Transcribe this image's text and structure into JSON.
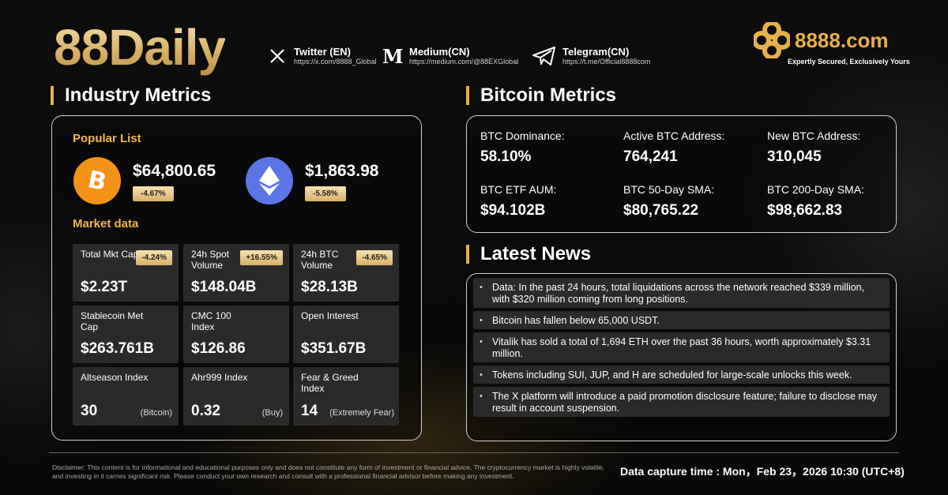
{
  "brand": {
    "title": "88Daily",
    "logo_text": "8888.com",
    "tagline": "Expertly Secured, Exclusively Yours",
    "accent": "#e8b04a"
  },
  "socials": [
    {
      "name": "Twitter (EN)",
      "url": "https://x.com/8888_Global",
      "icon": "x-icon"
    },
    {
      "name": "Medium(CN)",
      "url": "https://medium.com/@88EXGlobal",
      "icon": "medium-icon"
    },
    {
      "name": "Telegram(CN)",
      "url": "https://t.me/Official8888com",
      "icon": "telegram-icon"
    }
  ],
  "industry": {
    "title": "Industry Metrics",
    "popular_label": "Popular List",
    "coins": [
      {
        "icon": "bitcoin-icon",
        "price": "$64,800.65",
        "change": "-4.67%",
        "color": "#f39217"
      },
      {
        "icon": "ethereum-icon",
        "price": "$1,863.98",
        "change": "-5.58%",
        "color": "#5b74e6"
      }
    ],
    "market_label": "Market data",
    "market": [
      {
        "label": "Total Mkt Cap",
        "badge": "-4.24%",
        "value": "$2.23T",
        "note": ""
      },
      {
        "label": "24h Spot Volume",
        "badge": "+16.55%",
        "value": "$148.04B",
        "note": ""
      },
      {
        "label": "24h BTC Volume",
        "badge": "-4.65%",
        "value": "$28.13B",
        "note": ""
      },
      {
        "label": "Stablecoin Met Cap",
        "badge": "",
        "value": "$263.761B",
        "note": ""
      },
      {
        "label": "CMC 100 Index",
        "badge": "",
        "value": "$126.86",
        "note": ""
      },
      {
        "label": "Open Interest",
        "badge": "",
        "value": "$351.67B",
        "note": ""
      },
      {
        "label": "Altseason Index",
        "badge": "",
        "value": "30",
        "note": "(Bitcoin)"
      },
      {
        "label": "Ahr999 Index",
        "badge": "",
        "value": "0.32",
        "note": "(Buy)"
      },
      {
        "label": "Fear & Greed Index",
        "badge": "",
        "value": "14",
        "note": "(Extremely Fear)"
      }
    ]
  },
  "bitcoin": {
    "title": "Bitcoin Metrics",
    "metrics": [
      {
        "label": "BTC Dominance:",
        "value": "58.10%"
      },
      {
        "label": "Active BTC Address:",
        "value": "764,241"
      },
      {
        "label": "New BTC Address:",
        "value": "310,045"
      },
      {
        "label": "BTC ETF AUM:",
        "value": "$94.102B"
      },
      {
        "label": "BTC 50-Day SMA:",
        "value": "$80,765.22"
      },
      {
        "label": "BTC 200-Day SMA:",
        "value": "$98,662.83"
      }
    ]
  },
  "news": {
    "title": "Latest News",
    "items": [
      "Data: In the past 24 hours, total liquidations across the network reached $339 million, with $320 million coming from long positions.",
      "Bitcoin has fallen below 65,000 USDT.",
      "Vitalik has sold a total of 1,694 ETH over the past 36 hours, worth approximately $3.31 million.",
      "Tokens including SUI, JUP, and H are scheduled for large-scale unlocks this week.",
      "The X platform will introduce a paid promotion disclosure feature; failure to disclose may result in account suspension."
    ]
  },
  "footer": {
    "disclaimer": "Disclaimer: This content is for informational and educational purposes only and does not constitute any form of investment or financial advice. The cryptocurrency market is highly volatile, and investing in it carries significant risk. Please conduct your own research and consult with a professional financial advisor before making any investment.",
    "capture": "Data capture time : Mon，Feb 23，2026 10:30 (UTC+8)"
  }
}
